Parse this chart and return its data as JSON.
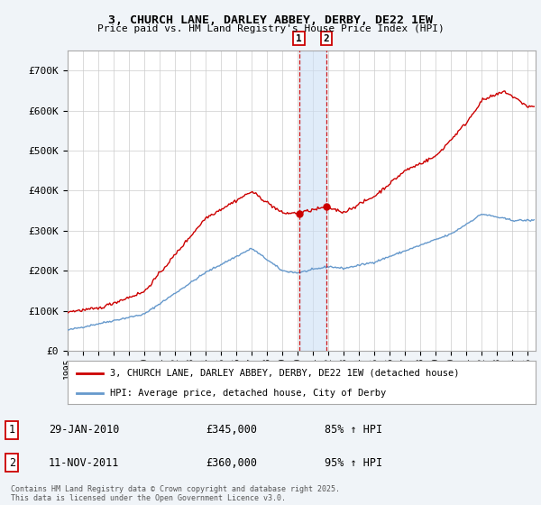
{
  "title1": "3, CHURCH LANE, DARLEY ABBEY, DERBY, DE22 1EW",
  "title2": "Price paid vs. HM Land Registry's House Price Index (HPI)",
  "ylim": [
    0,
    750000
  ],
  "yticks": [
    0,
    100000,
    200000,
    300000,
    400000,
    500000,
    600000,
    700000
  ],
  "ytick_labels": [
    "£0",
    "£100K",
    "£200K",
    "£300K",
    "£400K",
    "£500K",
    "£600K",
    "£700K"
  ],
  "red_label": "3, CHURCH LANE, DARLEY ABBEY, DERBY, DE22 1EW (detached house)",
  "blue_label": "HPI: Average price, detached house, City of Derby",
  "annotation1_date": "29-JAN-2010",
  "annotation1_price": "£345,000",
  "annotation1_hpi": "85% ↑ HPI",
  "annotation1_year": 2010.08,
  "annotation2_date": "11-NOV-2011",
  "annotation2_price": "£360,000",
  "annotation2_hpi": "95% ↑ HPI",
  "annotation2_year": 2011.86,
  "footer": "Contains HM Land Registry data © Crown copyright and database right 2025.\nThis data is licensed under the Open Government Licence v3.0.",
  "red_color": "#cc0000",
  "blue_color": "#6699cc",
  "bg_color": "#f0f4f8",
  "plot_bg": "#ffffff",
  "grid_color": "#cccccc",
  "shade_color": "#cce0f5"
}
